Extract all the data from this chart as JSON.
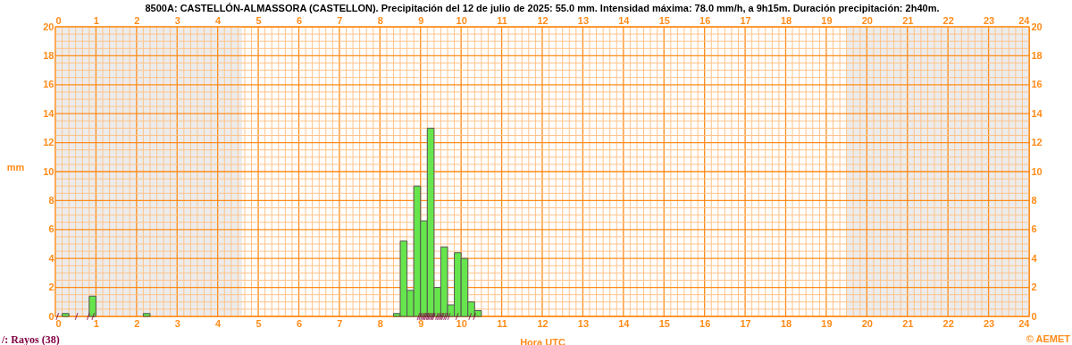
{
  "chart_data": {
    "type": "histogram",
    "title": "8500A: CASTELLÓN-ALMASSORA (CASTELLON). Precipitación del 12 de julio de 2025: 55.0 mm. Intensidad máxima: 78.0 mm/h, a 9h15m. Duración precipitación: 2h40m.",
    "xlabel": "Hora UTC",
    "ylabel": "mm",
    "bins": [
      0.1667,
      0.3333,
      0.5,
      0.6667,
      0.8333,
      1,
      1.1667,
      1.3333,
      1.5,
      1.6667,
      1.8333,
      2,
      2.1667,
      2.3333,
      2.5,
      2.6667,
      2.8333,
      3,
      3.1667,
      3.3333,
      3.5,
      3.6667,
      3.8333,
      4,
      4.1667,
      4.3333,
      4.5,
      4.6667,
      4.8333,
      5,
      5.1667,
      5.3333,
      5.5,
      5.6667,
      5.8333,
      6,
      6.1667,
      6.3333,
      6.5,
      6.6667,
      6.8333,
      7,
      7.1667,
      7.3333,
      7.5,
      7.6667,
      7.8333,
      8,
      8.1667,
      8.3333,
      8.5,
      8.6667,
      8.8333,
      9,
      9.1667,
      9.3333,
      9.5,
      9.6667,
      9.8333,
      10,
      10.1667,
      10.3333,
      10.5
    ],
    "series": [
      {
        "color": "#66e64c",
        "values": [
          0.2,
          0,
          0,
          0,
          1.4,
          0,
          0,
          0,
          0,
          0,
          0,
          0,
          0.2,
          0,
          0,
          0,
          0,
          0,
          0,
          0,
          0,
          0,
          0,
          0,
          0,
          0,
          0,
          0,
          0,
          0,
          0,
          0,
          0,
          0,
          0,
          0,
          0,
          0,
          0,
          0,
          0,
          0,
          0,
          0,
          0,
          0,
          0,
          0,
          0,
          0.2,
          5.2,
          1.8,
          9.0,
          6.6,
          13.0,
          2.0,
          4.8,
          0.8,
          4.4,
          4.0,
          1.0,
          0.4
        ]
      },
      {
        "type": "scatter",
        "name": "/: Rayos (38)",
        "color": "#800040",
        "x": [
          0.05,
          0.52,
          0.81,
          0.93,
          8.95,
          8.99,
          9.03,
          9.07,
          9.1,
          9.13,
          9.17,
          9.2,
          9.23,
          9.27,
          9.3,
          9.33,
          9.4,
          9.44,
          9.48,
          9.52,
          9.55,
          9.6,
          9.64,
          9.7,
          9.9,
          10.22,
          10.33
        ],
        "values": [
          0,
          0,
          0,
          0,
          0,
          0,
          0,
          0,
          0,
          0,
          0,
          0,
          0,
          0,
          0,
          0,
          0,
          0,
          0,
          0,
          0,
          0,
          0,
          0,
          0,
          0,
          0
        ]
      }
    ],
    "xlim": [
      0,
      24
    ],
    "xticks": [
      0,
      {
        "value": 0.1667,
        "label": null
      },
      {
        "value": 0.3333,
        "label": null
      },
      {
        "value": 0.5,
        "label": null
      },
      {
        "value": 0.6667,
        "label": null
      },
      {
        "value": 0.8333,
        "label": null
      },
      1,
      {
        "value": 1.1667,
        "label": null
      },
      {
        "value": 1.3333,
        "label": null
      },
      {
        "value": 1.5,
        "label": null
      },
      {
        "value": 1.6667,
        "label": null
      },
      {
        "value": 1.8333,
        "label": null
      },
      2,
      {
        "value": 2.1667,
        "label": null
      },
      {
        "value": 2.3333,
        "label": null
      },
      {
        "value": 2.5,
        "label": null
      },
      {
        "value": 2.6667,
        "label": null
      },
      {
        "value": 2.8333,
        "label": null
      },
      3,
      {
        "value": 3.1667,
        "label": null
      },
      {
        "value": 3.3333,
        "label": null
      },
      {
        "value": 3.5,
        "label": null
      },
      {
        "value": 3.6667,
        "label": null
      },
      {
        "value": 3.8333,
        "label": null
      },
      4,
      {
        "value": 4.1667,
        "label": null
      },
      {
        "value": 4.3333,
        "label": null
      },
      {
        "value": 4.5,
        "label": null
      },
      {
        "value": 4.6667,
        "label": null
      },
      {
        "value": 4.8333,
        "label": null
      },
      5,
      {
        "value": 5.1667,
        "label": null
      },
      {
        "value": 5.3333,
        "label": null
      },
      {
        "value": 5.5,
        "label": null
      },
      {
        "value": 5.6667,
        "label": null
      },
      {
        "value": 5.8333,
        "label": null
      },
      6,
      {
        "value": 6.1667,
        "label": null
      },
      {
        "value": 6.3333,
        "label": null
      },
      {
        "value": 6.5,
        "label": null
      },
      {
        "value": 6.6667,
        "label": null
      },
      {
        "value": 6.8333,
        "label": null
      },
      7,
      {
        "value": 7.1667,
        "label": null
      },
      {
        "value": 7.3333,
        "label": null
      },
      {
        "value": 7.5,
        "label": null
      },
      {
        "value": 7.6667,
        "label": null
      },
      {
        "value": 7.8333,
        "label": null
      },
      8,
      {
        "value": 8.1667,
        "label": null
      },
      {
        "value": 8.3333,
        "label": null
      },
      {
        "value": 8.5,
        "label": null
      },
      {
        "value": 8.6667,
        "label": null
      },
      {
        "value": 8.8333,
        "label": null
      },
      9,
      {
        "value": 9.1667,
        "label": null
      },
      {
        "value": 9.3333,
        "label": null
      },
      {
        "value": 9.5,
        "label": null
      },
      {
        "value": 9.6667,
        "label": null
      },
      {
        "value": 9.8333,
        "label": null
      },
      10,
      {
        "value": 10.1667,
        "label": null
      },
      {
        "value": 10.3333,
        "label": null
      },
      {
        "value": 10.5,
        "label": null
      },
      {
        "value": 10.6667,
        "label": null
      },
      {
        "value": 10.8333,
        "label": null
      },
      11,
      {
        "value": 11.1667,
        "label": null
      },
      {
        "value": 11.3333,
        "label": null
      },
      {
        "value": 11.5,
        "label": null
      },
      {
        "value": 11.6667,
        "label": null
      },
      {
        "value": 11.8333,
        "label": null
      },
      12,
      {
        "value": 12.1667,
        "label": null
      },
      {
        "value": 12.3333,
        "label": null
      },
      {
        "value": 12.5,
        "label": null
      },
      {
        "value": 12.6667,
        "label": null
      },
      {
        "value": 12.8333,
        "label": null
      },
      13,
      {
        "value": 13.1667,
        "label": null
      },
      {
        "value": 13.3333,
        "label": null
      },
      {
        "value": 13.5,
        "label": null
      },
      {
        "value": 13.6667,
        "label": null
      },
      {
        "value": 13.8333,
        "label": null
      },
      14,
      {
        "value": 14.1667,
        "label": null
      },
      {
        "value": 14.3333,
        "label": null
      },
      {
        "value": 14.5,
        "label": null
      },
      {
        "value": 14.6667,
        "label": null
      },
      {
        "value": 14.8333,
        "label": null
      },
      15,
      {
        "value": 15.1667,
        "label": null
      },
      {
        "value": 15.3333,
        "label": null
      },
      {
        "value": 15.5,
        "label": null
      },
      {
        "value": 15.6667,
        "label": null
      },
      {
        "value": 15.8333,
        "label": null
      },
      16,
      {
        "value": 16.1667,
        "label": null
      },
      {
        "value": 16.3333,
        "label": null
      },
      {
        "value": 16.5,
        "label": null
      },
      {
        "value": 16.6667,
        "label": null
      },
      {
        "value": 16.8333,
        "label": null
      },
      17,
      {
        "value": 17.1667,
        "label": null
      },
      {
        "value": 17.3333,
        "label": null
      },
      {
        "value": 17.5,
        "label": null
      },
      {
        "value": 17.6667,
        "label": null
      },
      {
        "value": 17.8333,
        "label": null
      },
      18,
      {
        "value": 18.1667,
        "label": null
      },
      {
        "value": 18.3333,
        "label": null
      },
      {
        "value": 18.5,
        "label": null
      },
      {
        "value": 18.6667,
        "label": null
      },
      {
        "value": 18.8333,
        "label": null
      },
      19,
      {
        "value": 19.1667,
        "label": null
      },
      {
        "value": 19.3333,
        "label": null
      },
      {
        "value": 19.5,
        "label": null
      },
      {
        "value": 19.6667,
        "label": null
      },
      {
        "value": 19.8333,
        "label": null
      },
      20,
      {
        "value": 20.1667,
        "label": null
      },
      {
        "value": 20.3333,
        "label": null
      },
      {
        "value": 20.5,
        "label": null
      },
      {
        "value": 20.6667,
        "label": null
      },
      {
        "value": 20.8333,
        "label": null
      },
      21,
      {
        "value": 21.1667,
        "label": null
      },
      {
        "value": 21.3333,
        "label": null
      },
      {
        "value": 21.5,
        "label": null
      },
      {
        "value": 21.6667,
        "label": null
      },
      {
        "value": 21.8333,
        "label": null
      },
      22,
      {
        "value": 22.1667,
        "label": null
      },
      {
        "value": 22.3333,
        "label": null
      },
      {
        "value": 22.5,
        "label": null
      },
      {
        "value": 22.6667,
        "label": null
      },
      {
        "value": 22.8333,
        "label": null
      },
      23,
      {
        "value": 23.1667,
        "label": null
      },
      {
        "value": 23.3333,
        "label": null
      },
      {
        "value": 23.5,
        "label": null
      },
      {
        "value": 23.6667,
        "label": null
      },
      {
        "value": 23.8333,
        "label": null
      },
      24
    ],
    "x2lim": [
      0,
      24
    ],
    "x2ticks": [
      0,
      1,
      2,
      3,
      4,
      5,
      6,
      7,
      8,
      9,
      10,
      11,
      12,
      13,
      14,
      15,
      16,
      17,
      18,
      19,
      20,
      21,
      22,
      23,
      24
    ],
    "ylim": [
      0,
      20
    ],
    "yticks": [
      0,
      {
        "value": 0.5,
        "label": null
      },
      {
        "value": 1,
        "label": null
      },
      {
        "value": 1.5,
        "label": null
      },
      2,
      {
        "value": 2.5,
        "label": null
      },
      {
        "value": 3,
        "label": null
      },
      {
        "value": 3.5,
        "label": null
      },
      4,
      {
        "value": 4.5,
        "label": null
      },
      {
        "value": 5,
        "label": null
      },
      {
        "value": 5.5,
        "label": null
      },
      6,
      {
        "value": 6.5,
        "label": null
      },
      {
        "value": 7,
        "label": null
      },
      {
        "value": 7.5,
        "label": null
      },
      8,
      {
        "value": 8.5,
        "label": null
      },
      {
        "value": 9,
        "label": null
      },
      {
        "value": 9.5,
        "label": null
      },
      10,
      {
        "value": 10.5,
        "label": null
      },
      {
        "value": 11,
        "label": null
      },
      {
        "value": 11.5,
        "label": null
      },
      12,
      {
        "value": 12.5,
        "label": null
      },
      {
        "value": 13,
        "label": null
      },
      {
        "value": 13.5,
        "label": null
      },
      14,
      {
        "value": 14.5,
        "label": null
      },
      {
        "value": 15,
        "label": null
      },
      {
        "value": 15.5,
        "label": null
      },
      16,
      {
        "value": 16.5,
        "label": null
      },
      {
        "value": 17,
        "label": null
      },
      {
        "value": 17.5,
        "label": null
      },
      18,
      {
        "value": 18.5,
        "label": null
      },
      {
        "value": 19,
        "label": null
      },
      {
        "value": 19.5,
        "label": null
      },
      20
    ],
    "y2lim": [
      0,
      20
    ],
    "y2ticks": [
      0,
      2,
      4,
      6,
      8,
      10,
      12,
      14,
      16,
      18,
      20
    ],
    "grid": true,
    "bands": [
      {
        "axis": "x",
        "from": 0,
        "to": 4.6,
        "color": "#ececec"
      },
      {
        "axis": "x",
        "from": 19.5,
        "to": 24,
        "color": "#ececec"
      }
    ],
    "annotations": [
      "© AEMET"
    ]
  }
}
